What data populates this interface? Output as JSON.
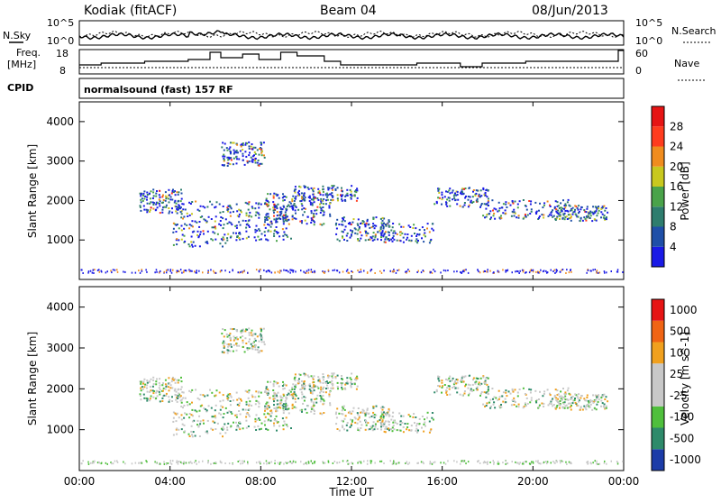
{
  "header": {
    "station": "Kodiak (fitACF)",
    "beam": "Beam 04",
    "date": "08/Jun/2013"
  },
  "strips": {
    "nsky_label": "N.Sky",
    "nsearch_label": "N.Search",
    "noise_ticks_left": [
      "10^5",
      "10^0"
    ],
    "noise_ticks_right": [
      "10^5",
      "10^0"
    ],
    "freq_label_1": "Freq.",
    "freq_label_2": "[MHz]",
    "freq_ticks": [
      "18",
      "8"
    ],
    "nave_label": "Nave",
    "nave_ticks": [
      "60",
      "0"
    ],
    "cpid_label": "CPID",
    "cpid_text": "normalsound (fast) 157 RF"
  },
  "chart_data": [
    {
      "type": "heatmap",
      "panel": "power",
      "ylabel": "Slant Range [km]",
      "ylim": [
        0,
        4500
      ],
      "yticks": [
        "1000",
        "2000",
        "3000",
        "4000"
      ],
      "xlim": [
        "00:00",
        "24:00"
      ],
      "colorbar_label": "Power [dB]",
      "colorbar_ticks": [
        "4",
        "8",
        "12",
        "16",
        "20",
        "24",
        "28"
      ],
      "colorbar_colors": [
        "#1a1ae6",
        "#1f4fa8",
        "#2e7d6e",
        "#4aa34a",
        "#c8c81e",
        "#f08c1e",
        "#ff3c1e",
        "#e61414"
      ]
    },
    {
      "type": "heatmap",
      "panel": "velocity",
      "ylabel": "Slant Range [km]",
      "ylim": [
        0,
        4500
      ],
      "yticks": [
        "1000",
        "2000",
        "3000",
        "4000"
      ],
      "xlim": [
        "00:00",
        "24:00"
      ],
      "colorbar_label": "Velocity [m s^-1]",
      "colorbar_ticks": [
        "1000",
        "500",
        "100",
        "25",
        "-25",
        "-100",
        "-500",
        "-1000"
      ],
      "colorbar_colors": [
        "#1c3ca8",
        "#2e8a6a",
        "#4fbf3c",
        "#c8c8c8",
        "#c8c8c8",
        "#f0a01e",
        "#f06414",
        "#e61414"
      ]
    }
  ],
  "xaxis": {
    "label": "Time UT",
    "ticks": [
      "00:00",
      "04:00",
      "08:00",
      "12:00",
      "16:00",
      "20:00",
      "00:00"
    ]
  }
}
